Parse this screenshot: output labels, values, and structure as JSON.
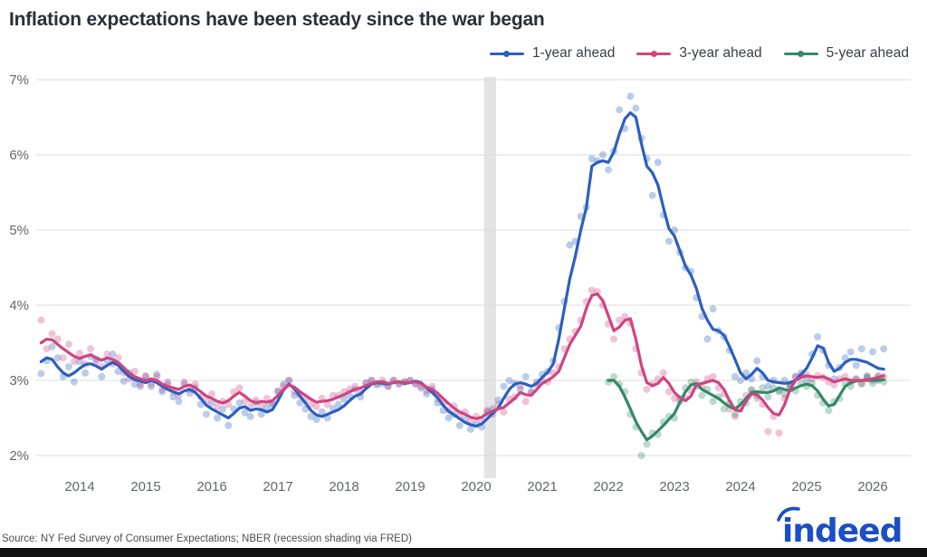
{
  "title": "Inflation expectations have been steady since the war began",
  "source_note": "Source: NY Fed Survey of Consumer Expectations; NBER (recession shading via FRED)",
  "brand": {
    "logo_text": "indeed",
    "logo_color": "#1c4fc4",
    "footer_bar_color": "#111111"
  },
  "style": {
    "grid_color": "#dcdcdc",
    "band_color": "#e4e4e4",
    "axis_label_color": "#63676c",
    "dot_opacity": 0.32
  },
  "chart_data": {
    "type": "line",
    "title": "Inflation expectations have been steady since the war began",
    "xlabel": "",
    "ylabel": "",
    "y_axis": {
      "min": 2,
      "max": 7,
      "ticks": [
        7,
        6,
        5,
        4,
        3,
        2
      ],
      "suffix": "%"
    },
    "x_axis": {
      "ticks": [
        2014,
        2015,
        2016,
        2017,
        2018,
        2019,
        2020,
        2021,
        2022,
        2023,
        2024,
        2025,
        2026
      ]
    },
    "grid": "horizontal",
    "legend_position": "top-right",
    "recession_band": {
      "start": 2020.12,
      "end": 2020.3
    },
    "note": "lines are smoothed monthly medians; faint dots are raw monthly readings",
    "series": [
      {
        "name": "1-year ahead",
        "color": "#2b5fc0",
        "start_year": 2013,
        "start_month": 6,
        "values": [
          3.25,
          3.3,
          3.28,
          3.18,
          3.1,
          3.06,
          3.1,
          3.16,
          3.21,
          3.22,
          3.19,
          3.15,
          3.2,
          3.24,
          3.2,
          3.12,
          3.05,
          3.01,
          2.99,
          2.97,
          3.0,
          2.97,
          2.92,
          2.88,
          2.85,
          2.82,
          2.86,
          2.88,
          2.84,
          2.76,
          2.67,
          2.62,
          2.58,
          2.54,
          2.5,
          2.56,
          2.63,
          2.65,
          2.6,
          2.62,
          2.61,
          2.58,
          2.61,
          2.73,
          2.87,
          2.95,
          2.89,
          2.79,
          2.7,
          2.6,
          2.54,
          2.52,
          2.55,
          2.58,
          2.61,
          2.66,
          2.73,
          2.79,
          2.82,
          2.89,
          2.95,
          2.97,
          2.96,
          2.95,
          2.97,
          2.98,
          2.96,
          2.97,
          2.99,
          2.97,
          2.9,
          2.84,
          2.77,
          2.67,
          2.59,
          2.54,
          2.49,
          2.44,
          2.41,
          2.39,
          2.42,
          2.49,
          2.56,
          2.63,
          2.76,
          2.88,
          2.95,
          2.97,
          2.95,
          2.92,
          2.96,
          3.04,
          3.11,
          3.22,
          3.55,
          3.95,
          4.35,
          4.65,
          5.0,
          5.3,
          5.85,
          5.9,
          5.92,
          5.9,
          6.04,
          6.28,
          6.48,
          6.56,
          6.5,
          6.15,
          5.85,
          5.76,
          5.6,
          5.3,
          5.02,
          4.92,
          4.72,
          4.52,
          4.4,
          4.22,
          3.96,
          3.8,
          3.68,
          3.66,
          3.6,
          3.45,
          3.28,
          3.1,
          3.02,
          3.08,
          3.16,
          3.1,
          3.0,
          2.98,
          2.97,
          2.96,
          2.97,
          3.0,
          3.08,
          3.16,
          3.3,
          3.46,
          3.43,
          3.24,
          3.12,
          3.16,
          3.24,
          3.28,
          3.28,
          3.26,
          3.24,
          3.2,
          3.16,
          3.15
        ],
        "monthly_dots": [
          3.09,
          3.26,
          3.45,
          3.3,
          3.05,
          3.18,
          2.98,
          3.25,
          3.1,
          3.32,
          3.28,
          3.05,
          3.26,
          3.35,
          3.12,
          2.99,
          3.1,
          2.95,
          2.92,
          3.05,
          2.92,
          3.08,
          2.85,
          2.95,
          2.78,
          2.72,
          2.95,
          2.83,
          2.9,
          2.68,
          2.55,
          2.7,
          2.5,
          2.62,
          2.4,
          2.62,
          2.7,
          2.57,
          2.52,
          2.7,
          2.55,
          2.64,
          2.68,
          2.85,
          2.95,
          3.0,
          2.8,
          2.7,
          2.62,
          2.52,
          2.48,
          2.58,
          2.5,
          2.63,
          2.68,
          2.75,
          2.8,
          2.88,
          2.78,
          2.97,
          3.0,
          2.94,
          2.96,
          2.92,
          3.0,
          2.95,
          2.98,
          3.0,
          2.95,
          2.9,
          2.82,
          2.88,
          2.7,
          2.6,
          2.5,
          2.55,
          2.4,
          2.48,
          2.35,
          2.42,
          2.38,
          2.58,
          2.62,
          2.74,
          2.92,
          3.0,
          2.96,
          2.88,
          3.05,
          2.84,
          2.98,
          3.08,
          3.12,
          3.26,
          3.7,
          4.05,
          4.8,
          4.85,
          5.18,
          5.3,
          5.95,
          5.92,
          6.0,
          5.8,
          6.05,
          6.6,
          6.35,
          6.78,
          6.62,
          6.22,
          5.95,
          5.46,
          5.9,
          5.2,
          4.85,
          5.0,
          4.7,
          4.5,
          4.45,
          4.1,
          3.85,
          3.55,
          3.95,
          3.66,
          3.58,
          3.4,
          3.05,
          3.0,
          3.1,
          3.02,
          3.26,
          3.05,
          2.92,
          3.0,
          2.87,
          3.0,
          2.92,
          3.05,
          3.1,
          3.0,
          3.35,
          3.58,
          3.4,
          3.2,
          3.02,
          3.17,
          3.3,
          3.38,
          3.2,
          3.42,
          3.06,
          3.38,
          3.0,
          3.42
        ]
      },
      {
        "name": "3-year ahead",
        "color": "#d04480",
        "start_year": 2013,
        "start_month": 6,
        "values": [
          3.5,
          3.55,
          3.54,
          3.48,
          3.42,
          3.37,
          3.32,
          3.29,
          3.32,
          3.34,
          3.3,
          3.27,
          3.3,
          3.28,
          3.24,
          3.17,
          3.1,
          3.05,
          3.02,
          3.0,
          3.02,
          3.0,
          2.95,
          2.92,
          2.9,
          2.88,
          2.92,
          2.94,
          2.9,
          2.85,
          2.79,
          2.76,
          2.72,
          2.7,
          2.73,
          2.79,
          2.84,
          2.79,
          2.73,
          2.7,
          2.72,
          2.71,
          2.73,
          2.8,
          2.88,
          2.94,
          2.91,
          2.85,
          2.8,
          2.75,
          2.71,
          2.72,
          2.73,
          2.75,
          2.78,
          2.81,
          2.85,
          2.88,
          2.9,
          2.93,
          2.96,
          2.98,
          2.98,
          2.96,
          2.97,
          2.98,
          2.97,
          2.97,
          2.98,
          2.96,
          2.91,
          2.88,
          2.83,
          2.76,
          2.69,
          2.63,
          2.58,
          2.55,
          2.51,
          2.49,
          2.51,
          2.56,
          2.59,
          2.62,
          2.64,
          2.7,
          2.76,
          2.84,
          2.81,
          2.8,
          2.88,
          2.96,
          3.0,
          3.05,
          3.12,
          3.3,
          3.48,
          3.6,
          3.72,
          3.96,
          4.13,
          4.15,
          4.06,
          3.86,
          3.66,
          3.71,
          3.8,
          3.82,
          3.55,
          3.2,
          2.97,
          2.93,
          2.96,
          3.04,
          2.96,
          2.84,
          2.77,
          2.73,
          2.79,
          2.94,
          2.96,
          2.98,
          3.0,
          2.97,
          2.88,
          2.73,
          2.61,
          2.59,
          2.72,
          2.82,
          2.81,
          2.74,
          2.64,
          2.56,
          2.54,
          2.68,
          2.88,
          3.0,
          3.04,
          3.06,
          3.05,
          3.04,
          3.05,
          3.02,
          2.98,
          3.0,
          3.02,
          3.0,
          3.0,
          3.0,
          3.01,
          3.02,
          3.04,
          3.06
        ],
        "monthly_dots": [
          3.8,
          3.42,
          3.62,
          3.55,
          3.3,
          3.48,
          3.25,
          3.36,
          3.22,
          3.42,
          3.25,
          3.18,
          3.35,
          3.22,
          3.3,
          3.1,
          3.02,
          3.12,
          2.95,
          3.06,
          2.95,
          3.05,
          2.88,
          2.98,
          2.85,
          2.8,
          2.98,
          2.88,
          2.95,
          2.78,
          2.72,
          2.82,
          2.65,
          2.72,
          2.68,
          2.85,
          2.9,
          2.72,
          2.65,
          2.74,
          2.67,
          2.76,
          2.7,
          2.86,
          2.92,
          3.0,
          2.85,
          2.8,
          2.74,
          2.68,
          2.65,
          2.76,
          2.68,
          2.8,
          2.8,
          2.85,
          2.88,
          2.92,
          2.84,
          2.96,
          3.0,
          2.96,
          3.0,
          2.92,
          3.0,
          2.96,
          2.98,
          3.0,
          2.96,
          2.92,
          2.86,
          2.92,
          2.76,
          2.7,
          2.6,
          2.66,
          2.52,
          2.58,
          2.45,
          2.52,
          2.46,
          2.6,
          2.55,
          2.68,
          2.58,
          2.75,
          2.78,
          2.92,
          2.72,
          2.85,
          2.94,
          3.0,
          2.98,
          3.1,
          3.18,
          3.42,
          3.55,
          3.65,
          3.8,
          4.05,
          4.2,
          4.18,
          4.0,
          3.75,
          3.55,
          3.8,
          3.85,
          3.76,
          3.42,
          3.1,
          2.88,
          2.95,
          3.02,
          3.1,
          2.85,
          2.76,
          2.72,
          2.76,
          2.86,
          2.98,
          2.92,
          3.02,
          3.05,
          2.9,
          2.82,
          2.62,
          2.52,
          2.62,
          2.8,
          2.86,
          2.76,
          2.68,
          2.32,
          2.52,
          2.3,
          2.76,
          2.95,
          3.05,
          3.06,
          3.08,
          3.02,
          3.06,
          3.04,
          2.98,
          2.94,
          3.02,
          3.05,
          2.98,
          3.02,
          2.96,
          3.04,
          3.0,
          3.06,
          3.05
        ]
      },
      {
        "name": "5-year ahead",
        "color": "#338866",
        "start_year": 2022,
        "start_month": 1,
        "values": [
          3.0,
          3.0,
          2.92,
          2.78,
          2.62,
          2.45,
          2.32,
          2.21,
          2.26,
          2.33,
          2.4,
          2.48,
          2.56,
          2.71,
          2.85,
          2.94,
          2.96,
          2.88,
          2.84,
          2.8,
          2.76,
          2.7,
          2.65,
          2.62,
          2.68,
          2.76,
          2.84,
          2.85,
          2.84,
          2.84,
          2.86,
          2.9,
          2.88,
          2.86,
          2.9,
          2.93,
          2.95,
          2.93,
          2.86,
          2.75,
          2.66,
          2.68,
          2.8,
          2.92,
          2.97,
          2.99,
          3.0,
          3.0,
          3.0,
          3.0,
          3.01
        ],
        "monthly_dots": [
          2.98,
          3.05,
          2.95,
          2.85,
          2.55,
          2.38,
          2.0,
          2.15,
          2.3,
          2.28,
          2.45,
          2.52,
          2.5,
          2.76,
          2.9,
          2.98,
          2.92,
          2.8,
          2.88,
          2.72,
          2.78,
          2.62,
          2.7,
          2.55,
          2.72,
          2.7,
          2.88,
          2.8,
          2.9,
          2.78,
          2.9,
          2.85,
          2.82,
          2.92,
          2.86,
          2.96,
          2.92,
          2.96,
          2.8,
          2.7,
          2.6,
          2.72,
          2.76,
          2.96,
          2.92,
          3.02,
          2.95,
          3.04,
          2.96,
          3.05,
          2.98
        ]
      }
    ]
  }
}
